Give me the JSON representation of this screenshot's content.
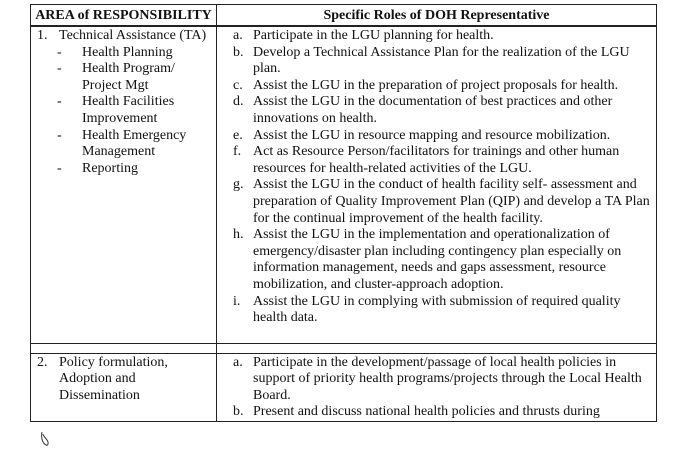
{
  "table": {
    "col1_header": "AREA of RESPONSIBILITY",
    "col2_header": "Specific Roles of DOH Representative",
    "rows": [
      {
        "number": "1.",
        "area": "Technical Assistance (TA)",
        "sub_items": [
          "Health Planning",
          "Health Program/ Project Mgt",
          "Health Facilities Improvement",
          "Health Emergency Management",
          "Reporting"
        ],
        "roles": [
          {
            "letter": "a.",
            "text": "Participate in the LGU planning for health."
          },
          {
            "letter": "b.",
            "text": "Develop a Technical Assistance Plan for the realization of the LGU plan."
          },
          {
            "letter": "c.",
            "text": "Assist the LGU in the preparation of project proposals for health."
          },
          {
            "letter": "d.",
            "text": "Assist the LGU in the documentation of best practices and other innovations on health."
          },
          {
            "letter": "e.",
            "text": "Assist the LGU in resource mapping and resource mobilization."
          },
          {
            "letter": "f.",
            "text": "Act as Resource Person/facilitators for trainings and other human resources for health-related activities of the LGU."
          },
          {
            "letter": "g.",
            "text": "Assist the LGU in the conduct of health facility self- assessment and preparation of Quality Improvement Plan (QIP) and develop a TA Plan for the continual improvement of the health facility."
          },
          {
            "letter": "h.",
            "text": "Assist the LGU in the implementation and operationalization of emergency/disaster plan including contingency plan especially on information management, needs and gaps assessment, resource mobilization, and cluster-approach adoption."
          },
          {
            "letter": "i.",
            "text": "Assist the LGU in complying with submission of required quality health data."
          }
        ]
      },
      {
        "number": "2.",
        "area": "Policy formulation, Adoption and Dissemination",
        "sub_items": [],
        "roles": [
          {
            "letter": "a.",
            "text": "Participate in the development/passage of local health policies in support of priority health programs/projects through the Local Health Board."
          },
          {
            "letter": "b.",
            "text": "Present and discuss national health policies and thrusts during"
          }
        ]
      }
    ]
  }
}
